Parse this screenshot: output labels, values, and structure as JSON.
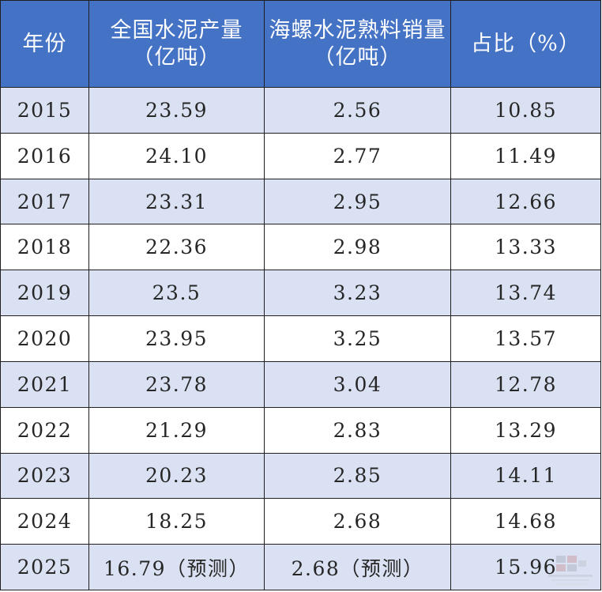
{
  "table": {
    "headers": [
      "年份",
      "全国水泥产量（亿吨）",
      "海螺水泥熟料销量（亿吨）",
      "占比（%）"
    ],
    "rows": [
      [
        "2015",
        "23.59",
        "2.56",
        "10.85"
      ],
      [
        "2016",
        "24.10",
        "2.77",
        "11.49"
      ],
      [
        "2017",
        "23.31",
        "2.95",
        "12.66"
      ],
      [
        "2018",
        "22.36",
        "2.98",
        "13.33"
      ],
      [
        "2019",
        "23.5",
        "3.23",
        "13.74"
      ],
      [
        "2020",
        "23.95",
        "3.25",
        "13.57"
      ],
      [
        "2021",
        "23.78",
        "3.04",
        "12.78"
      ],
      [
        "2022",
        "21.29",
        "2.83",
        "13.29"
      ],
      [
        "2023",
        "20.23",
        "2.85",
        "14.11"
      ],
      [
        "2024",
        "18.25",
        "2.68",
        "14.68"
      ],
      [
        "2025",
        "16.79（预测）",
        "2.68（预测）",
        "15.96"
      ]
    ]
  },
  "watermark": {
    "logo_icon": "ccement-logo-icon"
  },
  "colors": {
    "header_bg": "#4472c4",
    "header_text": "#ffffff",
    "row_shaded": "#d9e1f2",
    "row_plain": "#ffffff",
    "border": "#1f1f1f"
  }
}
